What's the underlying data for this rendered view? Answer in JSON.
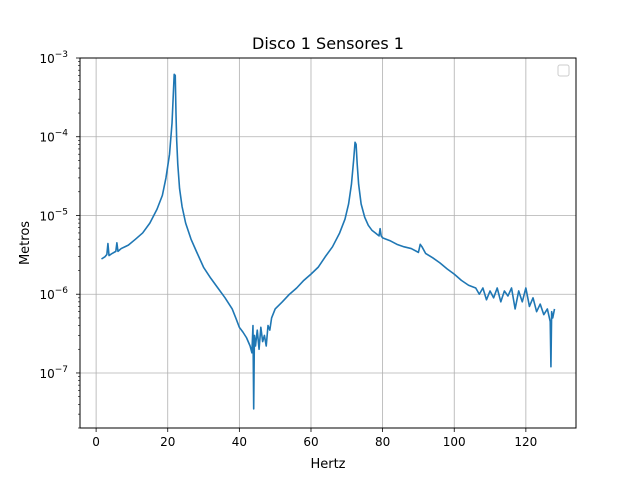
{
  "chart_data": {
    "type": "line",
    "title": "Disco 1 Sensores 1",
    "xlabel": "Hertz",
    "ylabel": "Metros",
    "xlim": [
      -4.5,
      134
    ],
    "ylim": [
      2e-08,
      0.001
    ],
    "yscale": "log",
    "grid": true,
    "legend": {
      "placement": "top-right",
      "entries": []
    },
    "x_ticks": [
      0,
      20,
      40,
      60,
      80,
      100,
      120
    ],
    "x_tick_labels": [
      "0",
      "20",
      "40",
      "60",
      "80",
      "100",
      "120"
    ],
    "y_ticks": [
      1e-07,
      1e-06,
      1e-05,
      0.0001,
      0.001
    ],
    "y_tick_labels": [
      {
        "base": "10",
        "exp": "−7"
      },
      {
        "base": "10",
        "exp": "−6"
      },
      {
        "base": "10",
        "exp": "−5"
      },
      {
        "base": "10",
        "exp": "−4"
      },
      {
        "base": "10",
        "exp": "−3"
      }
    ],
    "series": [
      {
        "color": "#1f77b4",
        "x": [
          1.5,
          2.5,
          3.0,
          3.3,
          3.6,
          4.5,
          5.5,
          5.8,
          6.1,
          7,
          9,
          11,
          13,
          15,
          17,
          18.5,
          19.5,
          20.5,
          21.2,
          21.8,
          22.1,
          22.3,
          22.5,
          22.8,
          23.3,
          24,
          25,
          26.5,
          28,
          30,
          32,
          34,
          36,
          38,
          39,
          40,
          41,
          42,
          43,
          43.5,
          43.8,
          44.0,
          44.2,
          44.5,
          45,
          45.5,
          46,
          46.5,
          47,
          47.5,
          48,
          48.5,
          49,
          50,
          52,
          54,
          56,
          58,
          60,
          62,
          64,
          66,
          68,
          69.5,
          70.5,
          71.3,
          71.9,
          72.3,
          72.6,
          72.9,
          73.3,
          74,
          75,
          76,
          77,
          78,
          79,
          79.3,
          79.6,
          80,
          82,
          84,
          86,
          88,
          90,
          90.5,
          91,
          92,
          94,
          96,
          98,
          100,
          102,
          104,
          106,
          107,
          108,
          109,
          110,
          111,
          112,
          113,
          114,
          115,
          116,
          117,
          118,
          119,
          120,
          121,
          122,
          123,
          124,
          125,
          126,
          126.8,
          127.0,
          127.2,
          127.5,
          128
        ],
        "y": [
          2.8e-06,
          3e-06,
          3.2e-06,
          4.4e-06,
          3.1e-06,
          3.3e-06,
          3.5e-06,
          4.5e-06,
          3.5e-06,
          3.8e-06,
          4.2e-06,
          5e-06,
          6e-06,
          8e-06,
          1.2e-05,
          1.8e-05,
          3e-05,
          6e-05,
          0.00015,
          0.00062,
          0.0006,
          0.0002,
          9e-05,
          4.5e-05,
          2.2e-05,
          1.3e-05,
          8e-06,
          5e-06,
          3.5e-06,
          2.2e-06,
          1.6e-06,
          1.2e-06,
          9e-07,
          6.5e-07,
          5e-07,
          3.8e-07,
          3.3e-07,
          2.8e-07,
          2.2e-07,
          1.8e-07,
          4e-07,
          3.5e-08,
          3e-07,
          2.2e-07,
          3.5e-07,
          2e-07,
          3.8e-07,
          2.5e-07,
          3e-07,
          2.2e-07,
          4e-07,
          3.5e-07,
          5e-07,
          6.5e-07,
          8e-07,
          1e-06,
          1.2e-06,
          1.5e-06,
          1.8e-06,
          2.2e-06,
          3e-06,
          4e-06,
          6e-06,
          9e-06,
          1.4e-05,
          2.5e-05,
          5e-05,
          8.5e-05,
          8e-05,
          4.5e-05,
          2.5e-05,
          1.4e-05,
          9.5e-06,
          7.5e-06,
          6.5e-06,
          6e-06,
          5.5e-06,
          6.8e-06,
          5.5e-06,
          5.2e-06,
          4.8e-06,
          4.3e-06,
          4e-06,
          3.8e-06,
          3.4e-06,
          4.3e-06,
          4e-06,
          3.3e-06,
          2.9e-06,
          2.5e-06,
          2.1e-06,
          1.8e-06,
          1.5e-06,
          1.3e-06,
          1.2e-06,
          1e-06,
          1.2e-06,
          8.5e-07,
          1.1e-06,
          9e-07,
          1.2e-06,
          8e-07,
          1.1e-06,
          9.5e-07,
          1.2e-06,
          6.5e-07,
          1.1e-06,
          8e-07,
          1.2e-06,
          7e-07,
          9e-07,
          6e-07,
          7.5e-07,
          5.5e-07,
          6.5e-07,
          4.5e-07,
          1.2e-07,
          6e-07,
          5e-07,
          6.5e-07
        ]
      }
    ]
  }
}
